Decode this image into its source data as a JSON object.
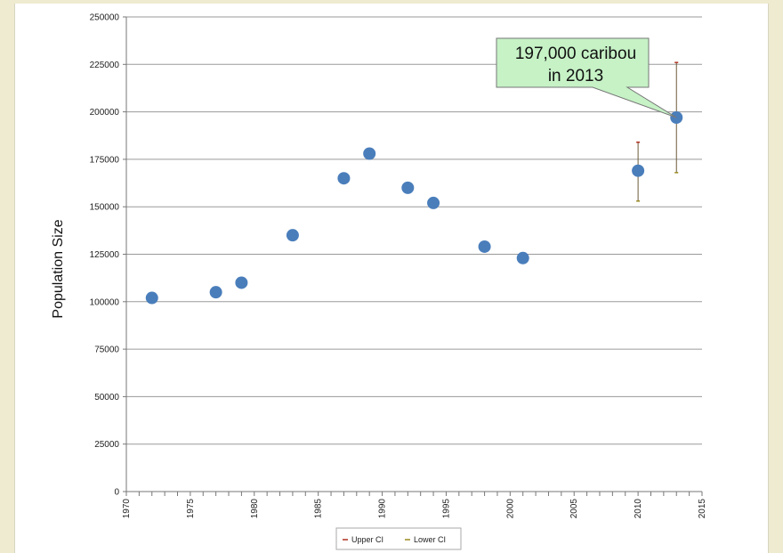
{
  "chart_data": {
    "type": "scatter",
    "title": "",
    "xlabel": "",
    "ylabel": "Population Size",
    "xlim": [
      1970,
      2015
    ],
    "ylim": [
      0,
      250000
    ],
    "x_ticks": [
      "1970",
      "1975",
      "1980",
      "1985",
      "1990",
      "1995",
      "2000",
      "2005",
      "2010",
      "2015"
    ],
    "y_ticks": [
      "0",
      "25000",
      "50000",
      "75000",
      "100000",
      "125000",
      "150000",
      "175000",
      "200000",
      "225000",
      "250000"
    ],
    "grid": "horizontal",
    "series": [
      {
        "points": [
          {
            "x": 1972,
            "y": 102000
          },
          {
            "x": 1977,
            "y": 105000
          },
          {
            "x": 1979,
            "y": 110000
          },
          {
            "x": 1983,
            "y": 135000
          },
          {
            "x": 1987,
            "y": 165000
          },
          {
            "x": 1989,
            "y": 178000
          },
          {
            "x": 1992,
            "y": 160000
          },
          {
            "x": 1994,
            "y": 152000
          },
          {
            "x": 1998,
            "y": 129000
          },
          {
            "x": 2001,
            "y": 123000
          },
          {
            "x": 2010,
            "y": 169000
          },
          {
            "x": 2013,
            "y": 197000
          }
        ],
        "color": "#4a7ebb"
      }
    ],
    "error_bars": [
      {
        "x": 2010,
        "upper": 184000,
        "lower": 153000
      },
      {
        "x": 2013,
        "upper": 226000,
        "lower": 168000
      }
    ],
    "legend": {
      "placement": "bottom",
      "entries": [
        {
          "label": "Upper CI",
          "color": "#b03020"
        },
        {
          "label": "Lower CI",
          "color": "#9a8a20"
        }
      ]
    },
    "annotation": {
      "lines": [
        "197,000 caribou",
        "in 2013"
      ],
      "target": {
        "x": 2013,
        "y": 197000
      },
      "fill": "#c6f2c6"
    }
  }
}
